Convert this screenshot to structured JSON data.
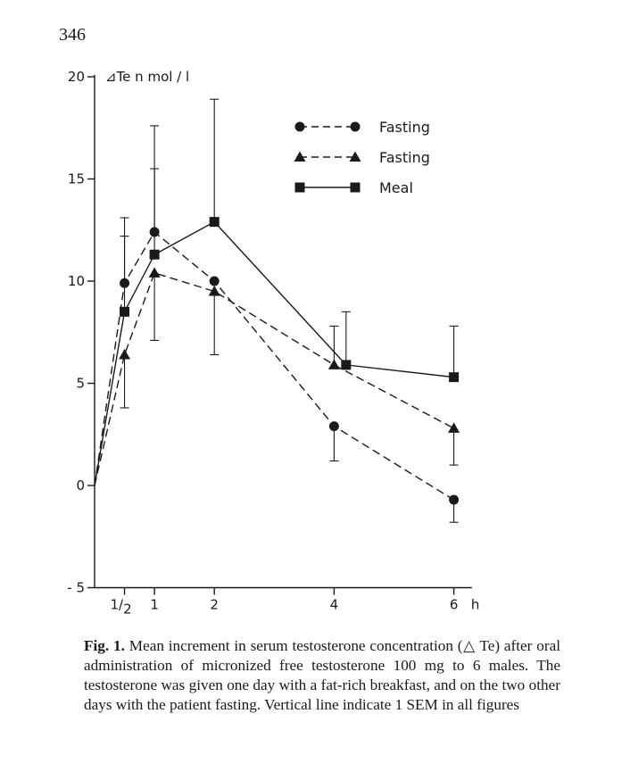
{
  "page": {
    "number": "346"
  },
  "chart_data": {
    "type": "line",
    "ylabel": "⊿Te  n mol / l",
    "xlabel": "h",
    "x_ticks": [
      {
        "value": 0.5,
        "label": "1/2"
      },
      {
        "value": 1,
        "label": "1"
      },
      {
        "value": 2,
        "label": "2"
      },
      {
        "value": 4,
        "label": "4"
      },
      {
        "value": 6,
        "label": "6"
      }
    ],
    "y_ticks": [
      {
        "value": -5,
        "label": "- 5"
      },
      {
        "value": 0,
        "label": "0"
      },
      {
        "value": 5,
        "label": "5"
      },
      {
        "value": 10,
        "label": "10"
      },
      {
        "value": 15,
        "label": "15"
      },
      {
        "value": 20,
        "label": "20"
      }
    ],
    "xlim": [
      0,
      6.3
    ],
    "ylim": [
      -5,
      20
    ],
    "legend_position": "top-right",
    "series": [
      {
        "name": "Fasting",
        "marker": "circle",
        "line_style": "dashed",
        "x": [
          0,
          0.5,
          1,
          2,
          4,
          6
        ],
        "y": [
          0,
          9.9,
          12.4,
          10.0,
          2.9,
          -0.7
        ],
        "err_high": [
          null,
          13.1,
          15.5,
          null,
          null,
          null
        ],
        "err_low": [
          null,
          null,
          null,
          null,
          1.2,
          -1.8
        ]
      },
      {
        "name": "Fasting",
        "marker": "triangle",
        "line_style": "dashed",
        "x": [
          0,
          0.5,
          1,
          2,
          4,
          6
        ],
        "y": [
          0,
          6.4,
          10.4,
          9.5,
          5.9,
          2.8
        ],
        "err_high": [
          null,
          null,
          null,
          null,
          null,
          null
        ],
        "err_low": [
          null,
          3.8,
          7.1,
          6.4,
          null,
          1.0
        ]
      },
      {
        "name": "Meal",
        "marker": "square",
        "line_style": "solid",
        "x": [
          0,
          0.5,
          1,
          2,
          4.2,
          6
        ],
        "y": [
          0,
          8.5,
          11.3,
          12.9,
          5.9,
          5.3
        ],
        "err_high": [
          null,
          12.2,
          17.6,
          18.9,
          8.5,
          7.8
        ],
        "err_low": [
          null,
          null,
          null,
          null,
          null,
          null
        ]
      }
    ],
    "extra_whiskers": [
      {
        "x": 4,
        "from": 5.9,
        "to": 7.8
      }
    ]
  },
  "caption": {
    "label": "Fig. 1.",
    "text": " Mean increment in serum testosterone concentration (△ Te) after oral administration of micronized free testosterone 100 mg to 6 males. The testosterone was given one day with a fat-rich breakfast, and on the two other days with the patient fasting. Vertical line indicate 1 SEM in all figures"
  }
}
